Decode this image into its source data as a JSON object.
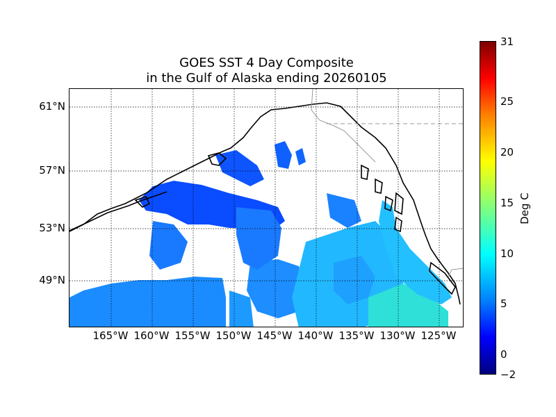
{
  "title": {
    "line1": "GOES SST 4 Day Composite",
    "line2": "in the Gulf of Alaska ending 20260105"
  },
  "map": {
    "lat_labels": [
      "61°N",
      "57°N",
      "53°N",
      "49°N"
    ],
    "lon_labels": [
      "165°W",
      "160°W",
      "155°W",
      "150°W",
      "145°W",
      "140°W",
      "135°W",
      "130°W",
      "125°W"
    ],
    "colors": {
      "cold": "#0000ff",
      "cool": "#0a5cff",
      "mid": "#1e8cff",
      "warm": "#22c8ff",
      "warmer": "#3ae8c8",
      "coast": "#000000",
      "border": "#999999"
    }
  },
  "colorbar": {
    "label": "Deg C",
    "ticks": [
      "31",
      "25",
      "20",
      "15",
      "10",
      "5",
      "0",
      "−2"
    ],
    "range": [
      -2,
      31
    ]
  }
}
